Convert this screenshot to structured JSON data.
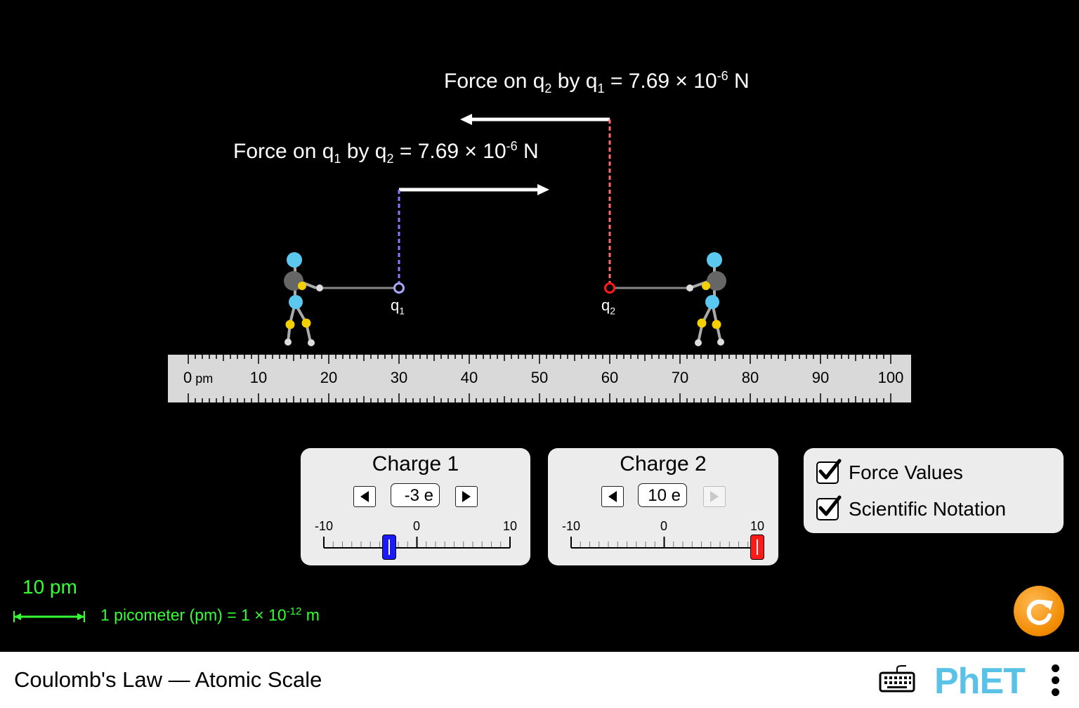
{
  "sim": {
    "force_q2": {
      "prefix": "Force on q",
      "sub1": "2",
      "mid": " by q",
      "sub2": "1",
      "eq": " = 7.69 × 10",
      "exp": "-6",
      "unit": " N"
    },
    "force_q1": {
      "prefix": "Force on q",
      "sub1": "1",
      "mid": " by q",
      "sub2": "2",
      "eq": " = 7.69 × 10",
      "exp": "-6",
      "unit": " N"
    },
    "q1_label": {
      "base": "q",
      "sub": "1"
    },
    "q2_label": {
      "base": "q",
      "sub": "2"
    },
    "q1_color": "#8080ff",
    "q2_color": "#ff0000"
  },
  "ruler": {
    "unit": "pm",
    "labels": [
      "0",
      "10",
      "20",
      "30",
      "40",
      "50",
      "60",
      "70",
      "80",
      "90",
      "100"
    ]
  },
  "charge1": {
    "title": "Charge 1",
    "value": "-3 e",
    "min_label": "-10",
    "zero_label": "0",
    "max_label": "10",
    "value_num": -3,
    "thumb_color": "#1a1aff"
  },
  "charge2": {
    "title": "Charge 2",
    "value": "10 e",
    "min_label": "-10",
    "zero_label": "0",
    "max_label": "10",
    "value_num": 10,
    "thumb_color": "#ff1a1a"
  },
  "options": {
    "force_values": {
      "label": "Force Values",
      "checked": true
    },
    "scientific_notation": {
      "label": "Scientific Notation",
      "checked": true
    }
  },
  "scale": {
    "label": "10 pm",
    "note_prefix": "1 picometer (pm) = 1 × 10",
    "note_exp": "-12",
    "note_unit": " m",
    "color": "#33ff33"
  },
  "footer": {
    "title": "Coulomb's Law — Atomic Scale",
    "logo_text": "PhET"
  }
}
